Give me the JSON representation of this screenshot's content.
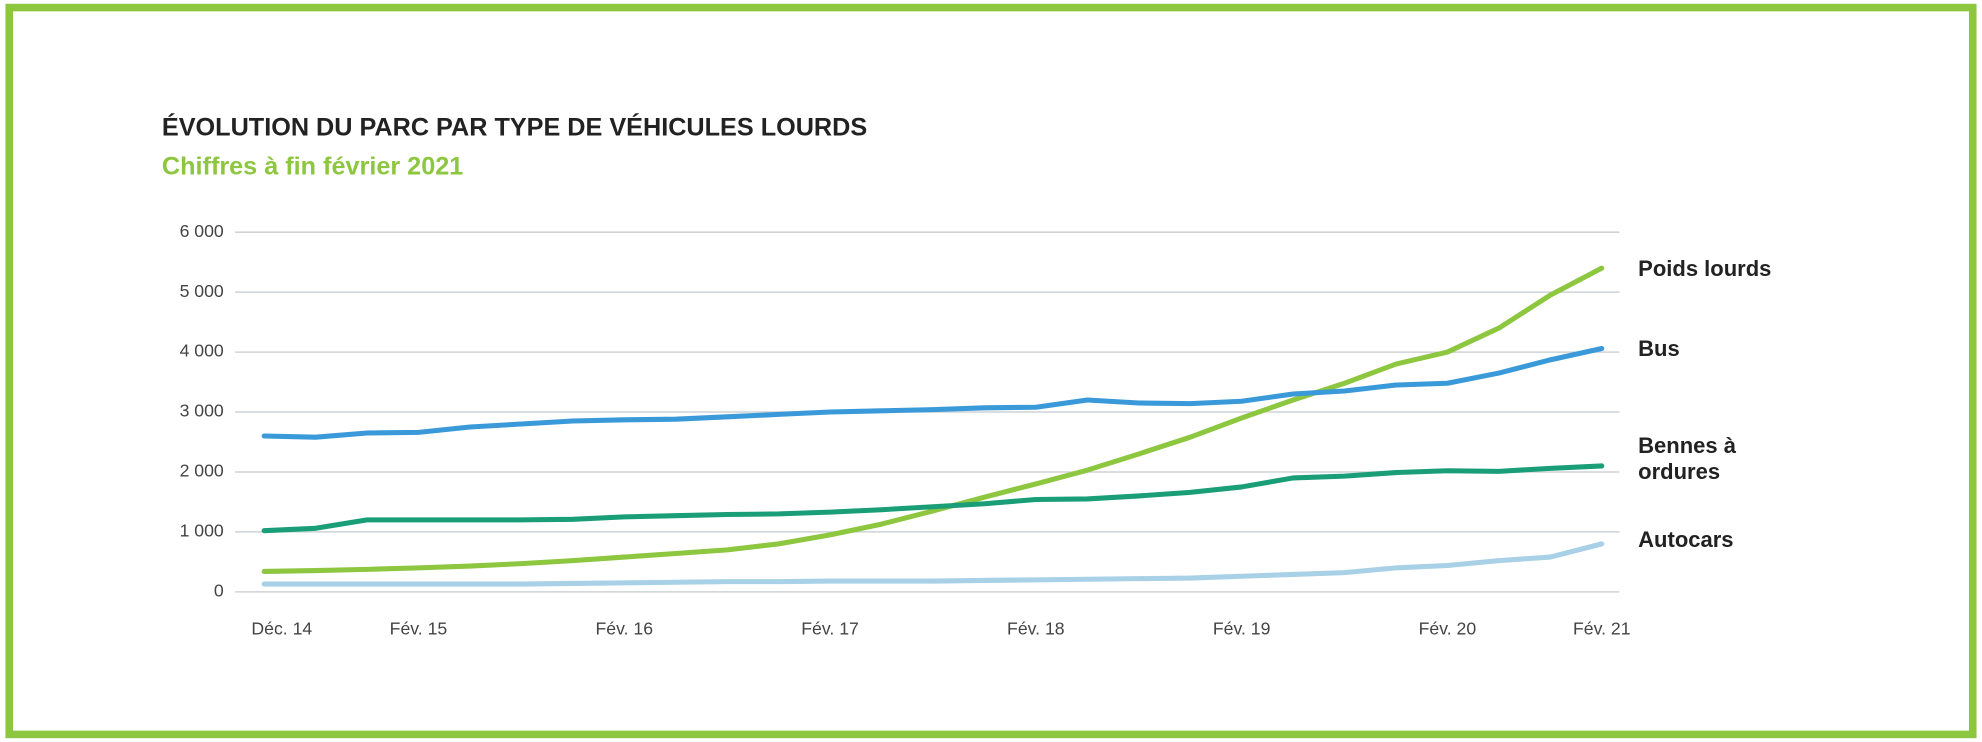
{
  "chart_data": {
    "type": "line",
    "title": "ÉVOLUTION DU PARC PAR TYPE DE VÉHICULES LOURDS",
    "subtitle": "Chiffres à fin février 2021",
    "categories": [
      "Déc. 14",
      null,
      null,
      "Fév. 15",
      null,
      null,
      null,
      "Fév. 16",
      null,
      null,
      null,
      "Fév. 17",
      null,
      null,
      null,
      "Fév. 18",
      null,
      null,
      null,
      "Fév. 19",
      null,
      null,
      null,
      "Fév. 20",
      null,
      null,
      "Fév. 21"
    ],
    "series": [
      {
        "name": "Poids lourds",
        "color": "#8dc63f",
        "values": [
          340,
          355,
          375,
          400,
          430,
          470,
          520,
          580,
          640,
          700,
          800,
          950,
          1130,
          1350,
          1580,
          1800,
          2030,
          2300,
          2580,
          2900,
          3200,
          3480,
          3800,
          4000,
          4400,
          4950,
          5400
        ]
      },
      {
        "name": "Bus",
        "color": "#3a9ad9",
        "values": [
          2600,
          2580,
          2650,
          2660,
          2750,
          2800,
          2850,
          2870,
          2880,
          2920,
          2960,
          3000,
          3020,
          3040,
          3070,
          3080,
          3200,
          3150,
          3140,
          3180,
          3300,
          3350,
          3450,
          3480,
          3650,
          3870,
          4060
        ]
      },
      {
        "name": "Bennes à ordures",
        "color": "#1a9e77",
        "values": [
          1020,
          1060,
          1200,
          1200,
          1200,
          1200,
          1210,
          1250,
          1270,
          1290,
          1300,
          1330,
          1370,
          1420,
          1470,
          1540,
          1550,
          1600,
          1660,
          1750,
          1900,
          1930,
          1990,
          2020,
          2010,
          2060,
          2100
        ]
      },
      {
        "name": "Autocars",
        "color": "#a8d0e6",
        "values": [
          130,
          130,
          130,
          130,
          130,
          130,
          140,
          150,
          160,
          170,
          170,
          180,
          180,
          180,
          190,
          200,
          210,
          220,
          230,
          260,
          290,
          320,
          400,
          440,
          520,
          580,
          800
        ]
      }
    ],
    "ylim": [
      0,
      6000
    ],
    "yticks": [
      0,
      {
        "value": 1000,
        "label": "1 000"
      },
      {
        "value": 2000,
        "label": "2 000"
      },
      {
        "value": 3000,
        "label": "3 000"
      },
      {
        "value": 4000,
        "label": "4 000"
      },
      {
        "value": 5000,
        "label": "5 000"
      },
      {
        "value": 6000,
        "label": "6 000"
      }
    ],
    "grid": true,
    "title_color": "#222222",
    "subtitle_color": "#8dc63f",
    "frame_color": "#8dc63f"
  }
}
